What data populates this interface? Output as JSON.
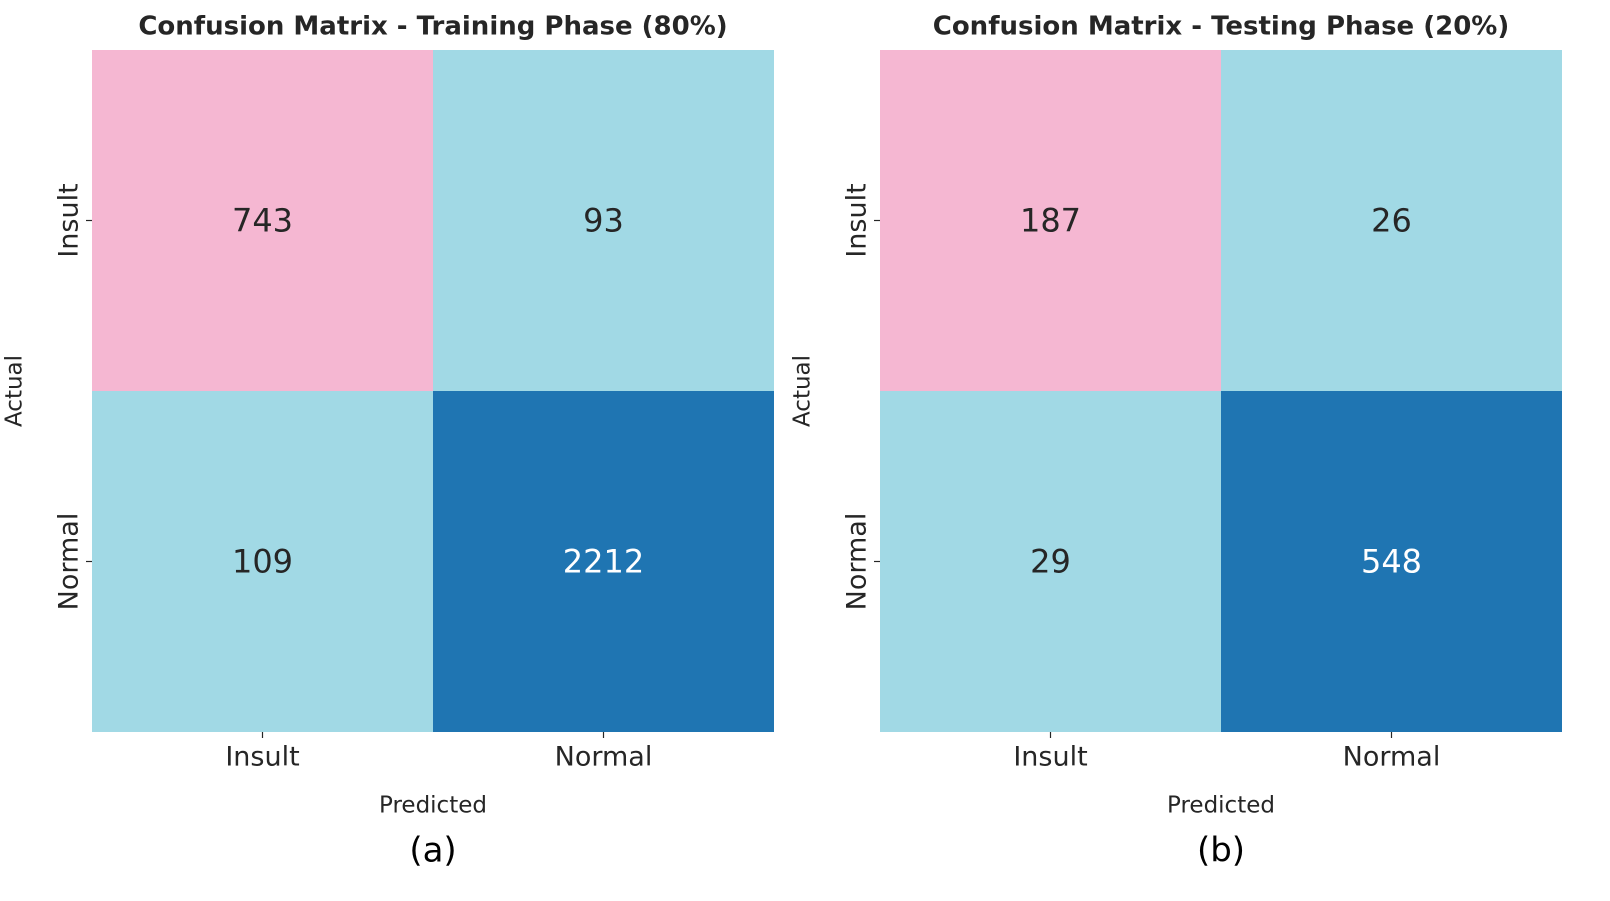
{
  "chart_data": [
    {
      "type": "heatmap",
      "title": "Confusion Matrix - Training Phase (80%)",
      "xlabel": "Predicted",
      "ylabel": "Actual",
      "x_categories": [
        "Insult",
        "Normal"
      ],
      "y_categories": [
        "Insult",
        "Normal"
      ],
      "values": [
        [
          743,
          93
        ],
        [
          109,
          2212
        ]
      ],
      "cell_colors": [
        [
          "#f5b7d2",
          "#a1d9e5"
        ],
        [
          "#a1d9e5",
          "#1f75b2"
        ]
      ],
      "text_colors": [
        [
          "#262626",
          "#262626"
        ],
        [
          "#262626",
          "#ffffff"
        ]
      ],
      "caption": "(a)"
    },
    {
      "type": "heatmap",
      "title": "Confusion Matrix - Testing Phase (20%)",
      "xlabel": "Predicted",
      "ylabel": "Actual",
      "x_categories": [
        "Insult",
        "Normal"
      ],
      "y_categories": [
        "Insult",
        "Normal"
      ],
      "values": [
        [
          187,
          26
        ],
        [
          29,
          548
        ]
      ],
      "cell_colors": [
        [
          "#f5b7d2",
          "#a1d9e5"
        ],
        [
          "#a1d9e5",
          "#1f75b2"
        ]
      ],
      "text_colors": [
        [
          "#262626",
          "#262626"
        ],
        [
          "#262626",
          "#ffffff"
        ]
      ],
      "caption": "(b)"
    }
  ]
}
